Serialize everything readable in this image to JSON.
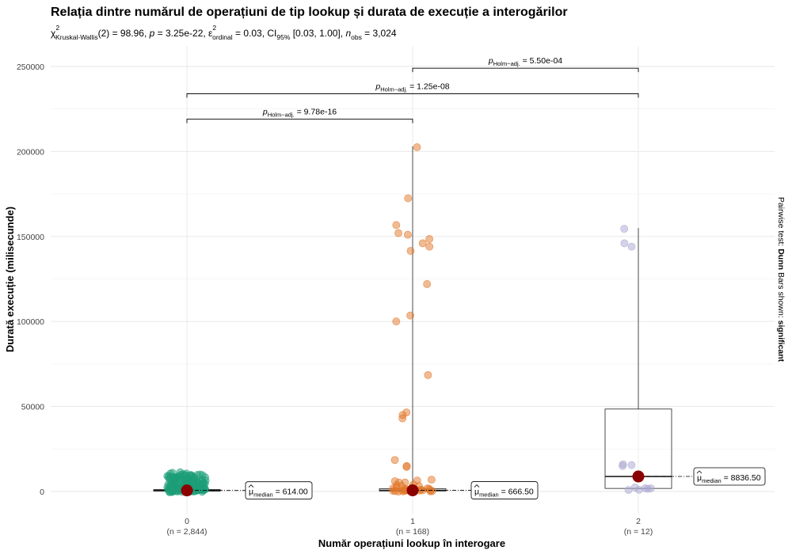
{
  "chart_data": {
    "type": "scatter",
    "title": "Relația dintre numărul de operațiuni de tip lookup și durata de execuție a interogărilor",
    "subtitle": {
      "chi": "χ",
      "chi_sup": "2",
      "chi_sub": "Kruskal-Wallis",
      "stat": "(2) = 98.96, ",
      "p_label": "p",
      "p_value": " = 3.25e-22, ",
      "eps": "ε",
      "eps_sup": "2",
      "eps_sub": "ordinal",
      "eps_value": " = 0.03, CI",
      "ci_sub": "95%",
      "ci_value": " [0.03, 1.00], ",
      "n_label": "n",
      "n_sub": "obs",
      "n_value": " = 3,024"
    },
    "xlabel": "Număr operațiuni lookup în interogare",
    "ylabel": "Durată execuție (milisecunde)",
    "caption_prefix": "Pairwise test: ",
    "caption_bold1": "Dunn",
    "caption_mid": " Bars shown: ",
    "caption_bold2": "significant",
    "ylim": [
      -15000,
      262000
    ],
    "yticks": [
      0,
      50000,
      100000,
      150000,
      200000,
      250000
    ],
    "ytick_labels": [
      "0",
      "50000",
      "100000",
      "150000",
      "200000",
      "250000"
    ],
    "categories": [
      "0",
      "1",
      "2"
    ],
    "group_n": [
      "(n = 2,844)",
      "(n = 168)",
      "(n = 12)"
    ],
    "colors": [
      "#1b9e77",
      "#e2782a",
      "#a9a6d2"
    ],
    "median_color": "#8b0000",
    "medians": [
      614.0,
      666.5,
      8836.5
    ],
    "median_labels": [
      "614.00",
      "666.50",
      "8836.50"
    ],
    "median_label_prefix": "μ",
    "median_label_sub": "median",
    "boxes": [
      {
        "q1": 200,
        "median": 614,
        "q3": 1200,
        "whisker_low": 0,
        "whisker_high": 3000
      },
      {
        "q1": 300,
        "median": 666.5,
        "q3": 1600,
        "whisker_low": 0,
        "whisker_high": 203000
      },
      {
        "q1": 1800,
        "median": 8836.5,
        "q3": 48500,
        "whisker_low": 1500,
        "whisker_high": 155000
      }
    ],
    "points": [
      {
        "group": 0,
        "values": [
          100,
          200,
          300,
          400,
          500,
          600,
          800,
          1000,
          1500,
          2000,
          2500,
          3000,
          3500,
          4000,
          4500,
          5000,
          5500,
          6000,
          6500,
          7000,
          7500,
          8000,
          8500,
          9000,
          9500,
          10000,
          10500,
          300,
          700,
          900,
          1200,
          1800,
          2200,
          2800,
          3300,
          3800,
          4200,
          4800,
          5300,
          5800,
          6300,
          6800,
          7300,
          7800,
          8300,
          8800,
          9300,
          9800,
          10300,
          150,
          250,
          350,
          450,
          550,
          650,
          750,
          850,
          950,
          1100,
          1300,
          1400,
          1600,
          1700,
          1900,
          2100,
          2300,
          2400,
          2600,
          2700,
          2900,
          3100,
          3200,
          3400,
          3600,
          3700,
          3900,
          4100,
          4300,
          4400,
          4600,
          4700,
          4900,
          5100,
          5200,
          5400,
          5600,
          5700,
          5900,
          6100,
          6200,
          6400,
          6600,
          6700,
          6900,
          7100,
          7200,
          7400,
          7600,
          7700,
          7900,
          8100,
          8200,
          8400,
          8600,
          8700,
          8900,
          9100,
          9200,
          9400,
          9600,
          9700,
          9900,
          10100,
          10200,
          10400,
          50,
          120,
          180,
          220,
          280,
          320,
          380,
          420,
          480,
          520,
          580,
          620,
          680,
          720,
          780,
          820,
          880,
          920,
          980,
          1050,
          1150,
          1250,
          1350,
          1450,
          1550,
          1650,
          1750,
          1850,
          1950
        ]
      },
      {
        "group": 1,
        "values": [
          202500,
          172500,
          156700,
          152000,
          151000,
          148500,
          146000,
          144000,
          141500,
          122000,
          103500,
          100000,
          68500,
          46500,
          45000,
          43000,
          18500,
          15000,
          14500,
          7500,
          6500,
          6000,
          5200,
          4800,
          4200,
          3600,
          3200,
          2800,
          2400,
          2100,
          1800,
          1600,
          1400,
          1200,
          1000,
          900,
          800,
          700,
          600,
          500,
          400,
          300,
          250,
          200,
          150,
          100,
          80,
          60,
          50,
          40
        ]
      },
      {
        "group": 2,
        "values": [
          154500,
          146000,
          144000,
          16000,
          15500,
          15000,
          2000,
          1800,
          1700,
          1600,
          1500,
          1400
        ]
      }
    ],
    "pairwise": [
      {
        "from": 1,
        "to": 2,
        "y": 249000,
        "label_p": "p",
        "label_sub": "Holm−adj.",
        "label_value": " = 5.50e-04"
      },
      {
        "from": 0,
        "to": 2,
        "y": 234000,
        "label_p": "p",
        "label_sub": "Holm−adj.",
        "label_value": " = 1.25e-08"
      },
      {
        "from": 0,
        "to": 1,
        "y": 219000,
        "label_p": "p",
        "label_sub": "Holm−adj.",
        "label_value": " = 9.78e-16"
      }
    ]
  }
}
